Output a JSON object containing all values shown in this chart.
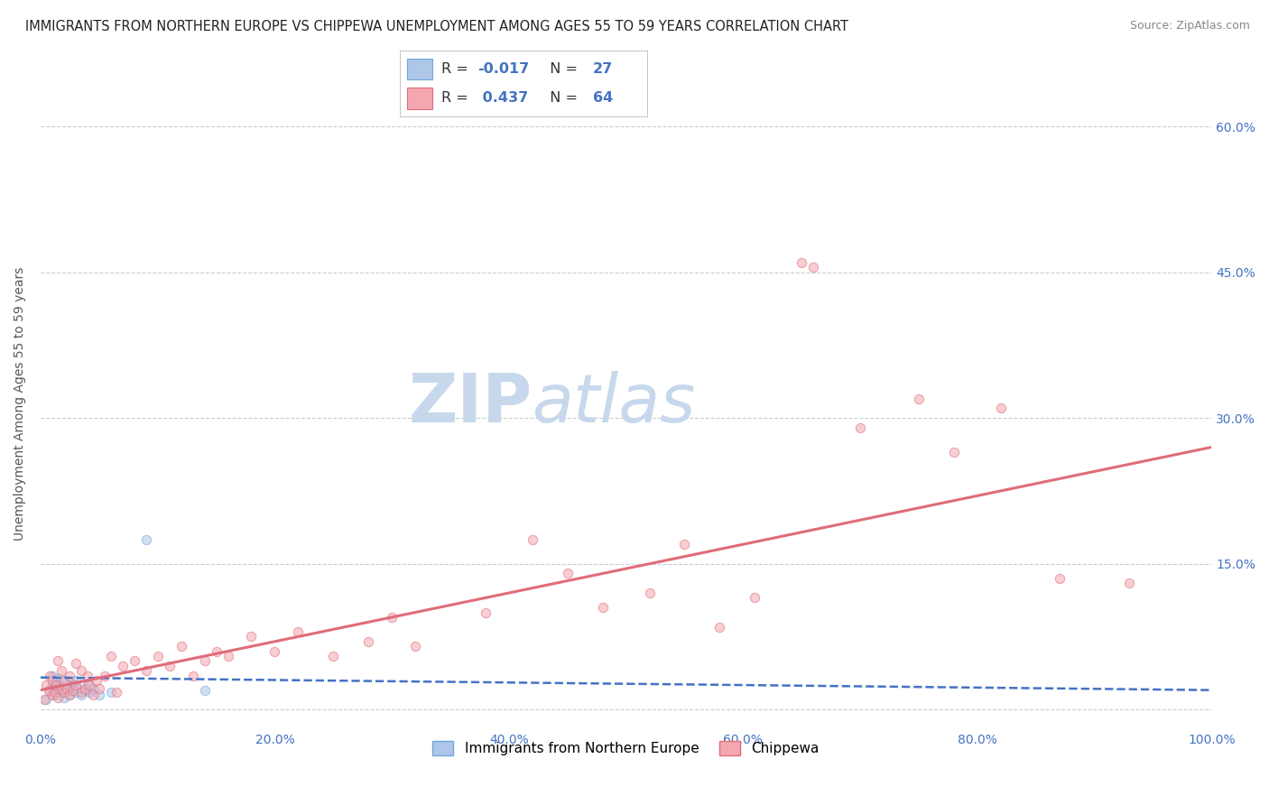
{
  "title": "IMMIGRANTS FROM NORTHERN EUROPE VS CHIPPEWA UNEMPLOYMENT AMONG AGES 55 TO 59 YEARS CORRELATION CHART",
  "source": "Source: ZipAtlas.com",
  "ylabel": "Unemployment Among Ages 55 to 59 years",
  "xlim": [
    0.0,
    1.0
  ],
  "ylim": [
    -0.02,
    0.65
  ],
  "x_ticks": [
    0.0,
    0.2,
    0.4,
    0.6,
    0.8,
    1.0
  ],
  "x_tick_labels": [
    "0.0%",
    "20.0%",
    "40.0%",
    "60.0%",
    "80.0%",
    "100.0%"
  ],
  "y_ticks": [
    0.0,
    0.15,
    0.3,
    0.45,
    0.6
  ],
  "y_tick_labels_right": [
    "",
    "15.0%",
    "30.0%",
    "45.0%",
    "60.0%"
  ],
  "watermark_zip": "ZIP",
  "watermark_atlas": "atlas",
  "legend_R1": "-0.017",
  "legend_N1": "27",
  "legend_R2": "0.437",
  "legend_N2": "64",
  "legend_label1": "Immigrants from Northern Europe",
  "legend_label2": "Chippewa",
  "blue_color": "#aec6e8",
  "blue_edge": "#6fa8dc",
  "pink_color": "#f4a7b0",
  "pink_edge": "#e06c7a",
  "blue_line_color": "#4472c4",
  "pink_line_color": "#e06c7a",
  "blue_scatter_x": [
    0.005,
    0.008,
    0.01,
    0.01,
    0.012,
    0.013,
    0.015,
    0.015,
    0.018,
    0.02,
    0.02,
    0.022,
    0.025,
    0.025,
    0.028,
    0.03,
    0.03,
    0.032,
    0.035,
    0.038,
    0.04,
    0.042,
    0.045,
    0.05,
    0.06,
    0.09,
    0.14
  ],
  "blue_scatter_y": [
    0.01,
    0.02,
    0.025,
    0.035,
    0.015,
    0.028,
    0.022,
    0.032,
    0.018,
    0.012,
    0.03,
    0.025,
    0.02,
    0.015,
    0.025,
    0.018,
    0.03,
    0.022,
    0.015,
    0.02,
    0.025,
    0.018,
    0.022,
    0.015,
    0.018,
    0.175,
    0.02
  ],
  "pink_scatter_x": [
    0.003,
    0.005,
    0.007,
    0.008,
    0.01,
    0.01,
    0.012,
    0.013,
    0.015,
    0.015,
    0.018,
    0.018,
    0.02,
    0.02,
    0.022,
    0.025,
    0.025,
    0.028,
    0.03,
    0.03,
    0.035,
    0.035,
    0.038,
    0.04,
    0.042,
    0.045,
    0.048,
    0.05,
    0.055,
    0.06,
    0.065,
    0.07,
    0.08,
    0.09,
    0.1,
    0.11,
    0.12,
    0.13,
    0.14,
    0.15,
    0.16,
    0.18,
    0.2,
    0.22,
    0.25,
    0.28,
    0.3,
    0.32,
    0.38,
    0.42,
    0.45,
    0.48,
    0.52,
    0.55,
    0.58,
    0.61,
    0.65,
    0.66,
    0.7,
    0.75,
    0.78,
    0.82,
    0.87,
    0.93
  ],
  "pink_scatter_y": [
    0.01,
    0.025,
    0.02,
    0.035,
    0.015,
    0.03,
    0.018,
    0.025,
    0.05,
    0.012,
    0.022,
    0.04,
    0.018,
    0.03,
    0.022,
    0.015,
    0.035,
    0.02,
    0.025,
    0.048,
    0.018,
    0.04,
    0.022,
    0.035,
    0.025,
    0.015,
    0.03,
    0.022,
    0.035,
    0.055,
    0.018,
    0.045,
    0.05,
    0.04,
    0.055,
    0.045,
    0.065,
    0.035,
    0.05,
    0.06,
    0.055,
    0.075,
    0.06,
    0.08,
    0.055,
    0.07,
    0.095,
    0.065,
    0.1,
    0.175,
    0.14,
    0.105,
    0.12,
    0.17,
    0.085,
    0.115,
    0.46,
    0.455,
    0.29,
    0.32,
    0.265,
    0.31,
    0.135,
    0.13
  ],
  "blue_line_x": [
    0.0,
    1.0
  ],
  "blue_line_y": [
    0.033,
    0.02
  ],
  "pink_line_x": [
    0.0,
    1.0
  ],
  "pink_line_y": [
    0.02,
    0.27
  ],
  "scatter_size": 55,
  "scatter_alpha": 0.55,
  "background_color": "#ffffff",
  "grid_color": "#cccccc",
  "title_color": "#222222",
  "title_fontsize": 10.5,
  "watermark_color": "#c8d8ec",
  "watermark_fontsize_zip": 54,
  "watermark_fontsize_atlas": 54,
  "axis_label_color": "#555555",
  "tick_color": "#4472c4",
  "source_color": "#888888",
  "source_fontsize": 9,
  "ylabel_fontsize": 10
}
